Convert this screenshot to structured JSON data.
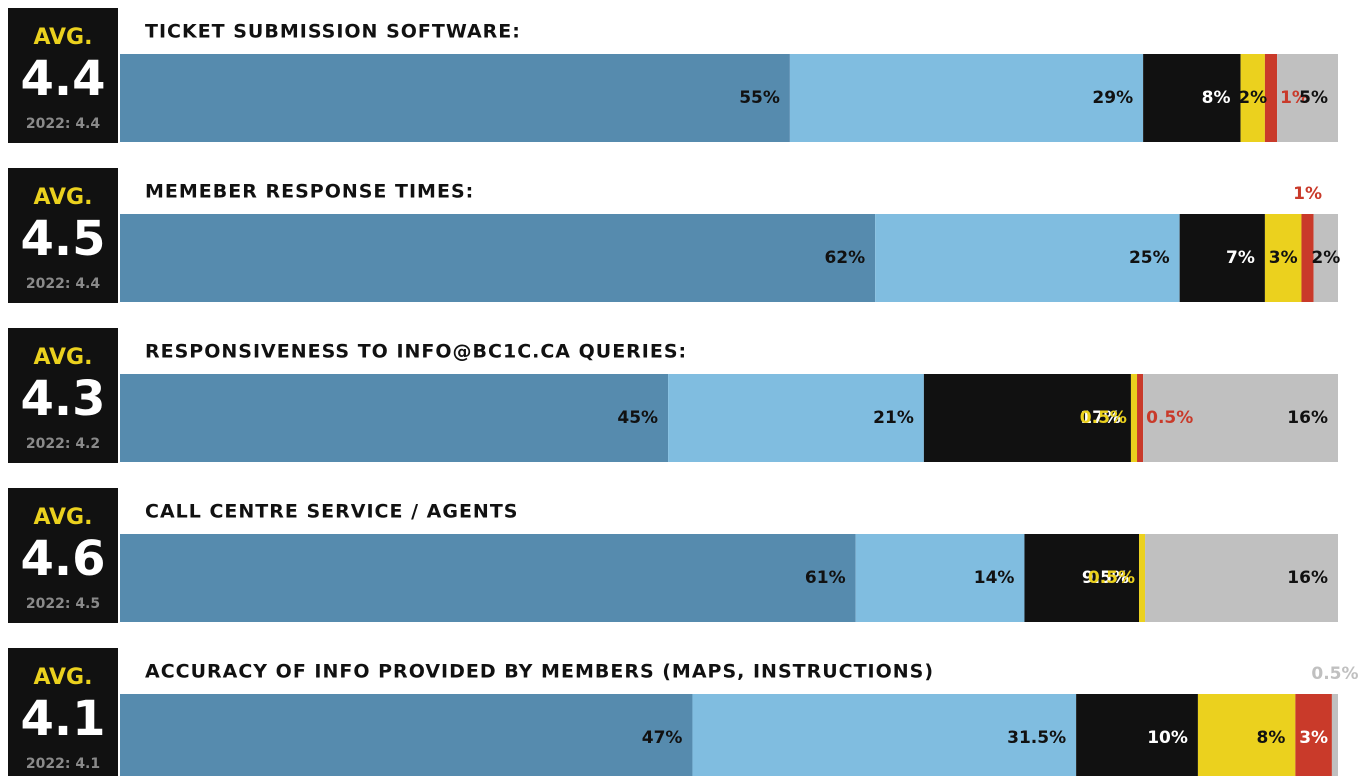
{
  "chart_data": {
    "type": "stacked-bar",
    "categories": [
      "TICKET SUBMISSION SOFTWARE:",
      "MEMEBER RESPONSE TIMES:",
      "RESPONSIVENESS TO INFO@BC1C.CA QUERIES:",
      "CALL CENTRE SERVICE / AGENTS",
      "ACCURACY OF INFO PROVIDED BY MEMBERS (MAPS, INSTRUCTIONS)"
    ],
    "badges": [
      {
        "label": "AVG.",
        "value": 4.4,
        "prior": "2022: 4.4"
      },
      {
        "label": "AVG.",
        "value": 4.5,
        "prior": "2022: 4.4"
      },
      {
        "label": "AVG.",
        "value": 4.3,
        "prior": "2022: 4.2"
      },
      {
        "label": "AVG.",
        "value": 4.6,
        "prior": "2022: 4.5"
      },
      {
        "label": "AVG.",
        "value": 4.1,
        "prior": "2022: 4.1"
      }
    ],
    "series": [
      {
        "color": "#568bae",
        "values": [
          55,
          62,
          45,
          61,
          47
        ],
        "value_labels": [
          "55%",
          "62%",
          "45%",
          "61%",
          "47%"
        ]
      },
      {
        "color": "#80bde0",
        "values": [
          29,
          25,
          21,
          14,
          31.5
        ],
        "value_labels": [
          "29%",
          "25%",
          "21%",
          "14%",
          "31.5%"
        ]
      },
      {
        "color": "#111111",
        "values": [
          8,
          7,
          17,
          9.5,
          10
        ],
        "value_labels": [
          "8%",
          "7%",
          "17%",
          "9.5%",
          "10%"
        ]
      },
      {
        "color": "#ebd11e",
        "values": [
          2,
          3,
          0.5,
          0.5,
          8
        ],
        "value_labels": [
          "2%",
          "3%",
          "0.5%",
          "0.5%",
          "8%"
        ]
      },
      {
        "color": "#c93a2a",
        "values": [
          1,
          1,
          0.5,
          null,
          3
        ],
        "value_labels": [
          "1%",
          "1%",
          "0.5%",
          null,
          "3%"
        ]
      },
      {
        "color": "#c0c0c0",
        "values": [
          5,
          2,
          16,
          16,
          0.5
        ],
        "value_labels": [
          "5%",
          "2%",
          "16%",
          "16%",
          "0.5%"
        ]
      }
    ]
  }
}
